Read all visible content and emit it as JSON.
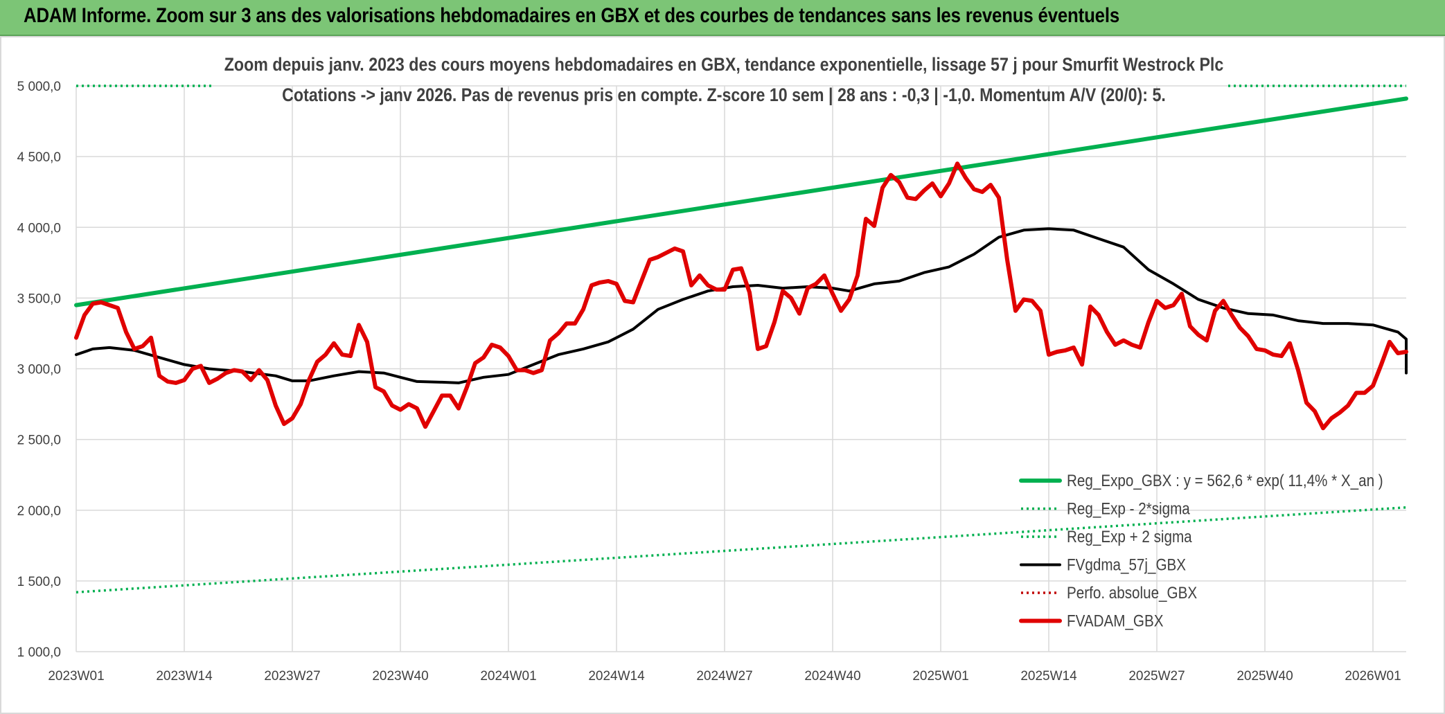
{
  "header": {
    "title": "ADAM Informe. Zoom sur 3 ans des valorisations hebdomadaires en GBX et des courbes de tendances sans les revenus éventuels"
  },
  "colors": {
    "header_bg": "#7cc576",
    "trend": "#00b050",
    "price": "#e00000",
    "smooth": "#000000",
    "perfo": "#c00000",
    "grid": "#d9d9d9"
  },
  "chart_data": {
    "type": "line",
    "subtitle_lines": [
      "Zoom depuis janv. 2023 des cours moyens hebdomadaires en GBX, tendance exponentielle, lissage 57 j pour Smurfit Westrock Plc",
      "Cotations -> janv 2026. Pas de revenus pris en compte. Z-score 10 sem | 28 ans : -0,3 | -1,0. Momentum A/V (20/0): 5."
    ],
    "x_tick_labels": [
      "2023W01",
      "2023W14",
      "2023W27",
      "2023W40",
      "2024W01",
      "2024W14",
      "2024W27",
      "2024W40",
      "2025W01",
      "2025W14",
      "2025W27",
      "2025W40",
      "2026W01"
    ],
    "x_tick_index": [
      0,
      13,
      26,
      39,
      52,
      65,
      78,
      91,
      104,
      117,
      130,
      143,
      156
    ],
    "x_range_index": [
      0,
      160
    ],
    "ylim": [
      1000,
      5000
    ],
    "y_ticks": [
      1000,
      1500,
      2000,
      2500,
      3000,
      3500,
      4000,
      4500,
      5000
    ],
    "y_tick_labels": [
      "1 000,0",
      "1 500,0",
      "2 000,0",
      "2 500,0",
      "3 000,0",
      "3 500,0",
      "4 000,0",
      "4 500,0",
      "5 000,0"
    ],
    "grid": true,
    "legend_position": "bottom-right",
    "series": [
      {
        "name": "Reg_Expo_GBX : y = 562,6 * exp( 11,4% *  X_an )",
        "style": "solid-thick",
        "color": "#00b050",
        "points": [
          [
            0,
            3450
          ],
          [
            160,
            4910
          ]
        ]
      },
      {
        "name": "Reg_Exp - 2*sigma",
        "style": "dotted",
        "color": "#00b050",
        "points": [
          [
            0,
            1420
          ],
          [
            160,
            2020
          ]
        ]
      },
      {
        "name": "Reg_Exp + 2 sigma",
        "style": "dotted",
        "color": "#00b050",
        "points": [
          [
            0,
            5000
          ],
          [
            160,
            5000
          ]
        ]
      },
      {
        "name": "FVgdma_57j_GBX",
        "style": "solid",
        "color": "#000000",
        "points": [
          [
            0,
            3100
          ],
          [
            2,
            3140
          ],
          [
            4,
            3150
          ],
          [
            7,
            3130
          ],
          [
            10,
            3080
          ],
          [
            13,
            3030
          ],
          [
            16,
            3000
          ],
          [
            20,
            2980
          ],
          [
            24,
            2950
          ],
          [
            26,
            2915
          ],
          [
            28,
            2915
          ],
          [
            31,
            2950
          ],
          [
            34,
            2980
          ],
          [
            37,
            2970
          ],
          [
            39,
            2940
          ],
          [
            41,
            2910
          ],
          [
            44,
            2905
          ],
          [
            46,
            2900
          ],
          [
            49,
            2940
          ],
          [
            52,
            2960
          ],
          [
            55,
            3030
          ],
          [
            58,
            3100
          ],
          [
            61,
            3140
          ],
          [
            64,
            3190
          ],
          [
            67,
            3280
          ],
          [
            70,
            3420
          ],
          [
            73,
            3490
          ],
          [
            76,
            3550
          ],
          [
            79,
            3580
          ],
          [
            82,
            3590
          ],
          [
            85,
            3570
          ],
          [
            88,
            3580
          ],
          [
            91,
            3570
          ],
          [
            93,
            3550
          ],
          [
            96,
            3600
          ],
          [
            99,
            3620
          ],
          [
            102,
            3680
          ],
          [
            105,
            3720
          ],
          [
            108,
            3810
          ],
          [
            111,
            3930
          ],
          [
            114,
            3980
          ],
          [
            117,
            3990
          ],
          [
            120,
            3980
          ],
          [
            123,
            3920
          ],
          [
            126,
            3860
          ],
          [
            129,
            3700
          ],
          [
            132,
            3600
          ],
          [
            135,
            3490
          ],
          [
            138,
            3430
          ],
          [
            141,
            3390
          ],
          [
            144,
            3380
          ],
          [
            147,
            3340
          ],
          [
            150,
            3320
          ],
          [
            153,
            3320
          ],
          [
            156,
            3310
          ],
          [
            159,
            3260
          ],
          [
            162,
            3210
          ],
          [
            165,
            3150
          ],
          [
            168,
            3110
          ],
          [
            171,
            3030
          ],
          [
            174,
            2975
          ],
          [
            177,
            2970
          ],
          [
            180,
            2990
          ],
          [
            183,
            3010
          ],
          [
            186,
            3040
          ],
          [
            189,
            3050
          ]
        ]
      },
      {
        "name": "Perfo. absolue_GBX",
        "style": "dotted",
        "color": "#c00000",
        "points": []
      },
      {
        "name": "FVADAM_GBX",
        "style": "solid-thick",
        "color": "#e00000",
        "points": [
          [
            0,
            3220
          ],
          [
            1,
            3380
          ],
          [
            2,
            3460
          ],
          [
            3,
            3470
          ],
          [
            4,
            3450
          ],
          [
            5,
            3430
          ],
          [
            6,
            3260
          ],
          [
            7,
            3140
          ],
          [
            8,
            3160
          ],
          [
            9,
            3220
          ],
          [
            10,
            2950
          ],
          [
            11,
            2910
          ],
          [
            12,
            2900
          ],
          [
            13,
            2920
          ],
          [
            14,
            3000
          ],
          [
            15,
            3020
          ],
          [
            16,
            2900
          ],
          [
            17,
            2930
          ],
          [
            18,
            2970
          ],
          [
            19,
            2990
          ],
          [
            20,
            2980
          ],
          [
            21,
            2920
          ],
          [
            22,
            2990
          ],
          [
            23,
            2920
          ],
          [
            24,
            2740
          ],
          [
            25,
            2610
          ],
          [
            26,
            2650
          ],
          [
            27,
            2750
          ],
          [
            28,
            2920
          ],
          [
            29,
            3050
          ],
          [
            30,
            3100
          ],
          [
            31,
            3180
          ],
          [
            32,
            3100
          ],
          [
            33,
            3090
          ],
          [
            34,
            3310
          ],
          [
            35,
            3190
          ],
          [
            36,
            2870
          ],
          [
            37,
            2840
          ],
          [
            38,
            2740
          ],
          [
            39,
            2710
          ],
          [
            40,
            2750
          ],
          [
            41,
            2720
          ],
          [
            42,
            2590
          ],
          [
            43,
            2700
          ],
          [
            44,
            2810
          ],
          [
            45,
            2810
          ],
          [
            46,
            2720
          ],
          [
            47,
            2870
          ],
          [
            48,
            3040
          ],
          [
            49,
            3080
          ],
          [
            50,
            3170
          ],
          [
            51,
            3150
          ],
          [
            52,
            3090
          ],
          [
            53,
            2990
          ],
          [
            54,
            2990
          ],
          [
            55,
            2970
          ],
          [
            56,
            2990
          ],
          [
            57,
            3200
          ],
          [
            58,
            3250
          ],
          [
            59,
            3320
          ],
          [
            60,
            3320
          ],
          [
            61,
            3420
          ],
          [
            62,
            3590
          ],
          [
            63,
            3610
          ],
          [
            64,
            3620
          ],
          [
            65,
            3600
          ],
          [
            66,
            3480
          ],
          [
            67,
            3470
          ],
          [
            68,
            3620
          ],
          [
            69,
            3770
          ],
          [
            70,
            3790
          ],
          [
            71,
            3820
          ],
          [
            72,
            3850
          ],
          [
            73,
            3830
          ],
          [
            74,
            3590
          ],
          [
            75,
            3660
          ],
          [
            76,
            3590
          ],
          [
            77,
            3560
          ],
          [
            78,
            3560
          ],
          [
            79,
            3700
          ],
          [
            80,
            3710
          ],
          [
            81,
            3540
          ],
          [
            82,
            3140
          ],
          [
            83,
            3160
          ],
          [
            84,
            3330
          ],
          [
            85,
            3550
          ],
          [
            86,
            3500
          ],
          [
            87,
            3390
          ],
          [
            88,
            3570
          ],
          [
            89,
            3600
          ],
          [
            90,
            3660
          ],
          [
            91,
            3530
          ],
          [
            92,
            3410
          ],
          [
            93,
            3490
          ],
          [
            94,
            3660
          ],
          [
            95,
            4060
          ],
          [
            96,
            4010
          ],
          [
            97,
            4280
          ],
          [
            98,
            4370
          ],
          [
            99,
            4320
          ],
          [
            100,
            4210
          ],
          [
            101,
            4200
          ],
          [
            102,
            4260
          ],
          [
            103,
            4310
          ],
          [
            104,
            4220
          ],
          [
            105,
            4310
          ],
          [
            106,
            4450
          ],
          [
            107,
            4350
          ],
          [
            108,
            4270
          ],
          [
            109,
            4250
          ],
          [
            110,
            4300
          ],
          [
            111,
            4210
          ],
          [
            112,
            3770
          ],
          [
            113,
            3410
          ],
          [
            114,
            3490
          ],
          [
            115,
            3480
          ],
          [
            116,
            3410
          ],
          [
            117,
            3100
          ],
          [
            118,
            3120
          ],
          [
            119,
            3130
          ],
          [
            120,
            3150
          ],
          [
            121,
            3030
          ],
          [
            122,
            3440
          ],
          [
            123,
            3380
          ],
          [
            124,
            3260
          ],
          [
            125,
            3170
          ],
          [
            126,
            3200
          ],
          [
            127,
            3170
          ],
          [
            128,
            3150
          ],
          [
            129,
            3330
          ],
          [
            130,
            3480
          ],
          [
            131,
            3430
          ],
          [
            132,
            3450
          ],
          [
            133,
            3530
          ],
          [
            134,
            3300
          ],
          [
            135,
            3240
          ],
          [
            136,
            3200
          ],
          [
            137,
            3410
          ],
          [
            138,
            3480
          ],
          [
            139,
            3380
          ],
          [
            140,
            3290
          ],
          [
            141,
            3230
          ],
          [
            142,
            3140
          ],
          [
            143,
            3130
          ],
          [
            144,
            3100
          ],
          [
            145,
            3090
          ],
          [
            146,
            3180
          ],
          [
            147,
            2990
          ],
          [
            148,
            2760
          ],
          [
            149,
            2700
          ],
          [
            150,
            2580
          ],
          [
            151,
            2650
          ],
          [
            152,
            2690
          ],
          [
            153,
            2740
          ],
          [
            154,
            2830
          ],
          [
            155,
            2830
          ],
          [
            156,
            2880
          ],
          [
            157,
            3030
          ],
          [
            158,
            3190
          ],
          [
            159,
            3110
          ],
          [
            160,
            3120
          ]
        ]
      }
    ]
  }
}
